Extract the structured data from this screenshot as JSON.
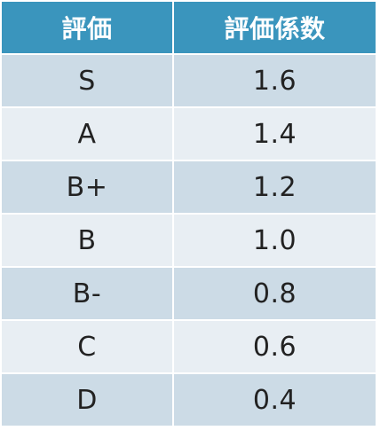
{
  "table": {
    "headers": [
      "評価",
      "評価係数"
    ],
    "rows": [
      {
        "grade": "S",
        "coef": "1.6"
      },
      {
        "grade": "A",
        "coef": "1.4"
      },
      {
        "grade": "B+",
        "coef": "1.2"
      },
      {
        "grade": "B",
        "coef": "1.0"
      },
      {
        "grade": "B-",
        "coef": "0.8"
      },
      {
        "grade": "C",
        "coef": "0.6"
      },
      {
        "grade": "D",
        "coef": "0.4"
      }
    ]
  },
  "colors": {
    "header_bg": "#3a95bd",
    "row_dark": "#ccdbe6",
    "row_light": "#e8eef3"
  }
}
